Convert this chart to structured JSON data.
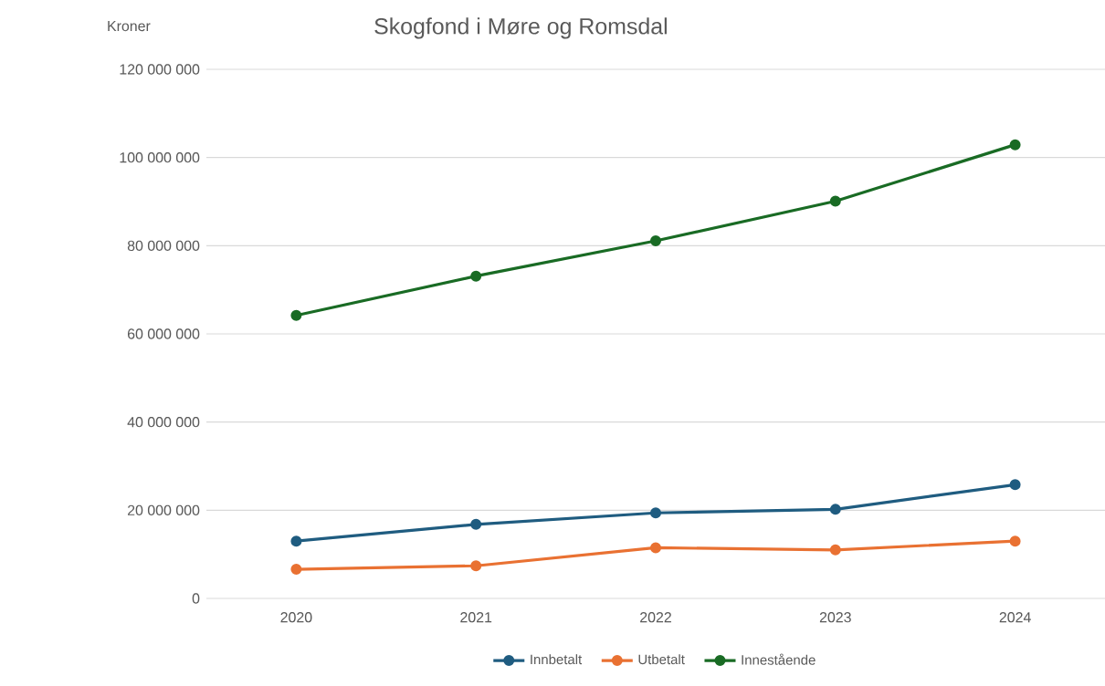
{
  "chart_data": {
    "type": "line",
    "title": "Skogfond i Møre og Romsdal",
    "ylabel": "Kroner",
    "categories": [
      "2020",
      "2021",
      "2022",
      "2023",
      "2024"
    ],
    "series": [
      {
        "name": "Innbetalt",
        "color": "#1f5c80",
        "values": [
          13000000,
          16800000,
          19400000,
          20200000,
          25800000
        ]
      },
      {
        "name": "Utbetalt",
        "color": "#e97132",
        "values": [
          6600000,
          7400000,
          11500000,
          11000000,
          13000000
        ]
      },
      {
        "name": "Innestående",
        "color": "#196b24",
        "values": [
          64200000,
          73100000,
          81100000,
          90100000,
          102900000
        ]
      }
    ],
    "ylim": [
      0,
      120000000
    ],
    "yticks": [
      {
        "value": 0,
        "label": "0"
      },
      {
        "value": 20000000,
        "label": "20 000 000"
      },
      {
        "value": 40000000,
        "label": "40 000 000"
      },
      {
        "value": 60000000,
        "label": "60 000 000"
      },
      {
        "value": 80000000,
        "label": "80 000 000"
      },
      {
        "value": 100000000,
        "label": "100 000 000"
      },
      {
        "value": 120000000,
        "label": "120 000 000"
      }
    ],
    "grid": "y",
    "legend": "bottom",
    "marker": "circle",
    "line_style": "solid"
  }
}
